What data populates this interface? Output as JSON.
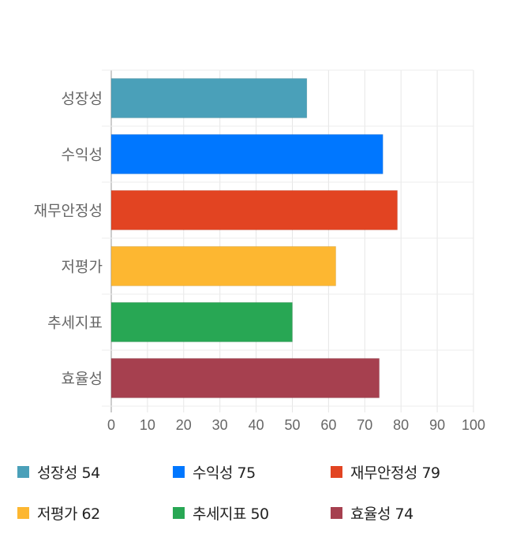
{
  "chart_data": {
    "type": "bar",
    "orientation": "horizontal",
    "categories": [
      "성장성",
      "수익성",
      "재무안정성",
      "저평가",
      "추세지표",
      "효율성"
    ],
    "values": [
      54,
      75,
      79,
      62,
      50,
      74
    ],
    "colors": [
      "#4aa0b9",
      "#0077ff",
      "#e24422",
      "#fdb731",
      "#28a754",
      "#a6404f"
    ],
    "xlim": [
      0,
      100
    ],
    "xticks": [
      0,
      10,
      20,
      30,
      40,
      50,
      60,
      70,
      80,
      90,
      100
    ],
    "grid": true,
    "legend_position": "bottom",
    "legend": [
      {
        "label": "성장성",
        "value": "54"
      },
      {
        "label": "수익성",
        "value": "75"
      },
      {
        "label": "재무안정성",
        "value": "79"
      },
      {
        "label": "저평가",
        "value": "62"
      },
      {
        "label": "추세지표",
        "value": "50"
      },
      {
        "label": "효율성",
        "value": "74"
      }
    ]
  }
}
